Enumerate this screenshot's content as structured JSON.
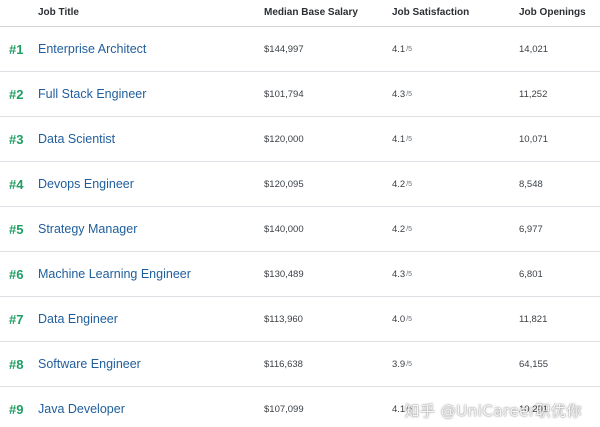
{
  "headers": {
    "job_title": "Job Title",
    "salary": "Median Base Salary",
    "satisfaction": "Job Satisfaction",
    "openings": "Job Openings"
  },
  "satisfaction_scale": "/5",
  "rows": [
    {
      "rank": "#1",
      "title": "Enterprise Architect",
      "salary": "$144,997",
      "satisfaction": "4.1",
      "openings": "14,021"
    },
    {
      "rank": "#2",
      "title": "Full Stack Engineer",
      "salary": "$101,794",
      "satisfaction": "4.3",
      "openings": "11,252"
    },
    {
      "rank": "#3",
      "title": "Data Scientist",
      "salary": "$120,000",
      "satisfaction": "4.1",
      "openings": "10,071"
    },
    {
      "rank": "#4",
      "title": "Devops Engineer",
      "salary": "$120,095",
      "satisfaction": "4.2",
      "openings": "8,548"
    },
    {
      "rank": "#5",
      "title": "Strategy Manager",
      "salary": "$140,000",
      "satisfaction": "4.2",
      "openings": "6,977"
    },
    {
      "rank": "#6",
      "title": "Machine Learning Engineer",
      "salary": "$130,489",
      "satisfaction": "4.3",
      "openings": "6,801"
    },
    {
      "rank": "#7",
      "title": "Data Engineer",
      "salary": "$113,960",
      "satisfaction": "4.0",
      "openings": "11,821"
    },
    {
      "rank": "#8",
      "title": "Software Engineer",
      "salary": "$116,638",
      "satisfaction": "3.9",
      "openings": "64,155"
    },
    {
      "rank": "#9",
      "title": "Java Developer",
      "salary": "$107,099",
      "satisfaction": "4.1",
      "openings": "10,201"
    }
  ],
  "watermark": "知乎 @UniCareer职优你",
  "colors": {
    "rank": "#1e9e63",
    "job_title": "#1f5e9c",
    "divider": "#dde1e5"
  }
}
